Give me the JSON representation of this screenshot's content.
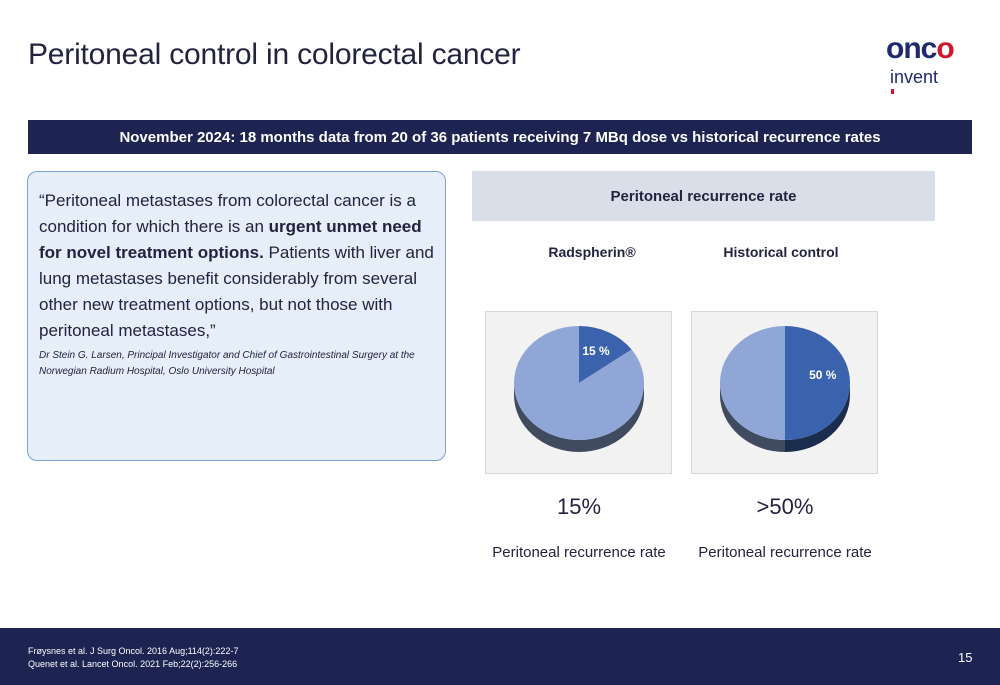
{
  "title": "Peritoneal control in colorectal cancer",
  "logo": {
    "top_left": "onc",
    "top_right": "o",
    "bottom": "invent"
  },
  "banner": "November 2024: 18 months data from 20 of 36 patients receiving 7 MBq dose vs historical recurrence rates",
  "quote": {
    "part1": "“Peritoneal metastases from colorectal cancer is a condition for which there is an ",
    "bold": "urgent unmet need for novel treatment options.",
    "part2": " Patients with liver and lung metastases benefit considerably from several other new treatment options, but not those with peritoneal metastases,”",
    "attribution": "Dr Stein G. Larsen, Principal Investigator and Chief of Gastrointestinal Surgery at the Norwegian Radium Hospital, Oslo University Hospital"
  },
  "chart_header": "Peritoneal recurrence rate",
  "colors": {
    "highlight": "#3b63ad",
    "rest": "#8fa6d6",
    "navy": "#1d2451"
  },
  "chart_data": [
    {
      "type": "pie",
      "title": "Radspherin®",
      "slices": [
        {
          "label": "15 %",
          "value": 15,
          "highlight": true
        },
        {
          "value": 85
        }
      ],
      "big_value": "15%",
      "caption": "Peritoneal recurrence rate"
    },
    {
      "type": "pie",
      "title": "Historical control",
      "slices": [
        {
          "label": "50 %",
          "value": 50,
          "highlight": true
        },
        {
          "value": 50
        }
      ],
      "big_value": ">50%",
      "caption": "Peritoneal recurrence rate"
    }
  ],
  "footer": {
    "references": [
      "Frøysnes et al. J Surg Oncol. 2016 Aug;114(2):222-7",
      "Quenet et al. Lancet Oncol. 2021 Feb;22(2):256-266"
    ],
    "page_number": "15"
  }
}
